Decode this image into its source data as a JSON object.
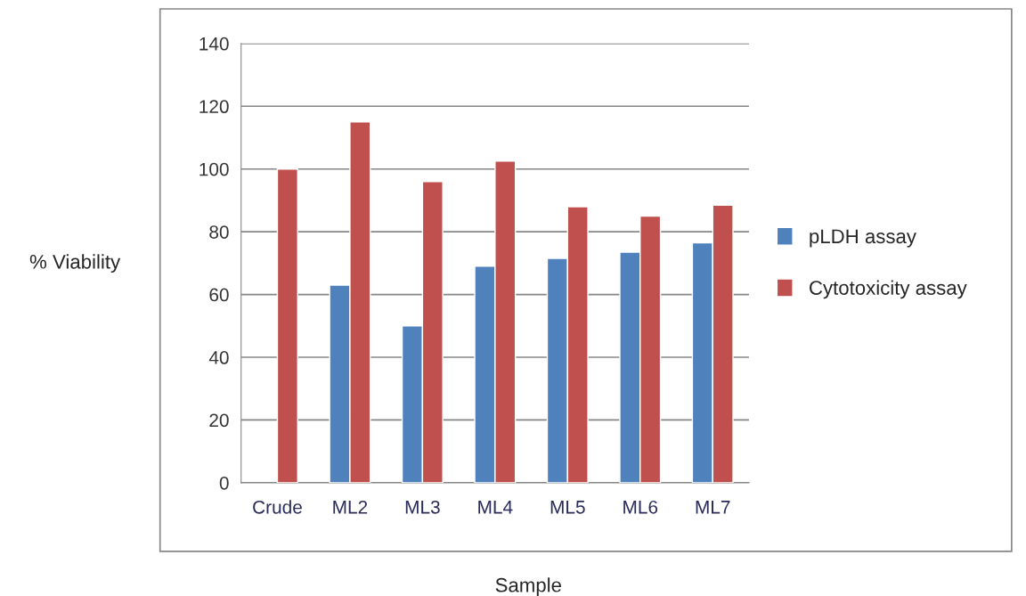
{
  "chart_data": {
    "type": "bar",
    "xlabel": "Sample",
    "ylabel": "% Viability",
    "categories": [
      "Crude",
      "ML2",
      "ML3",
      "ML4",
      "ML5",
      "ML6",
      "ML7"
    ],
    "series": [
      {
        "name": "pLDH assay",
        "color": "#4f81bd",
        "values": [
          null,
          63,
          50,
          69,
          71.5,
          73.5,
          76.5
        ]
      },
      {
        "name": "Cytotoxicity assay",
        "color": "#c0504d",
        "values": [
          100,
          115,
          96,
          102.5,
          88,
          85,
          88.5
        ]
      }
    ],
    "ylim": [
      0,
      140
    ],
    "yticks": [
      0,
      20,
      40,
      60,
      80,
      100,
      120,
      140
    ],
    "grid": "y",
    "legend": "right"
  }
}
